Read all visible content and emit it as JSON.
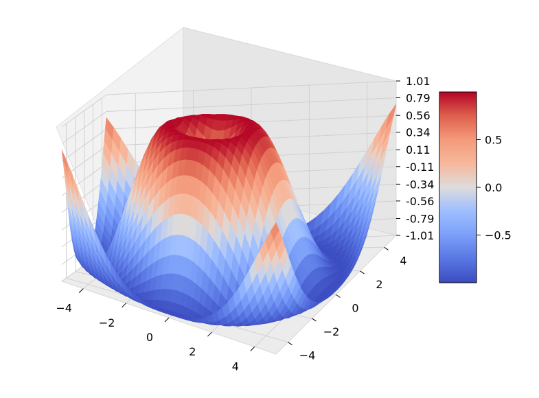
{
  "chart_data": {
    "type": "surface3d",
    "title": "",
    "function": "z = sin(sqrt(x^2 + y^2))",
    "x_range": [
      -5,
      5
    ],
    "y_range": [
      -5,
      5
    ],
    "z_range": [
      -1.01,
      1.01
    ],
    "grid": true,
    "colormap": "coolwarm",
    "x_ticks": [
      "−4",
      "−2",
      "0",
      "2",
      "4"
    ],
    "y_ticks": [
      "−4",
      "−2",
      "0",
      "2",
      "4"
    ],
    "z_ticks": [
      "-1.01",
      "-0.79",
      "-0.56",
      "-0.34",
      "-0.11",
      "0.11",
      "0.34",
      "0.56",
      "0.79",
      "1.01"
    ],
    "colorbar": {
      "position": "right",
      "range": [
        -1,
        1
      ],
      "ticks": [
        "0.5",
        "0.0",
        "−0.5"
      ]
    }
  }
}
